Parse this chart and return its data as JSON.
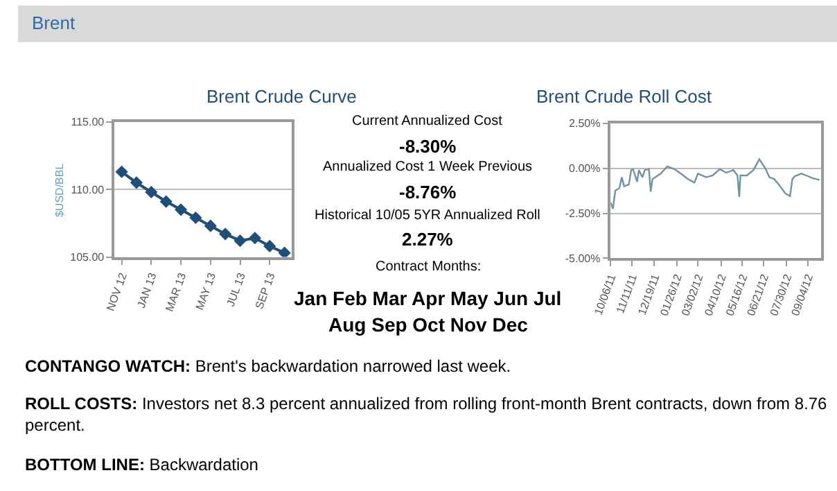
{
  "chart_data": [
    {
      "type": "line",
      "title": "Brent Crude Curve",
      "ylabel": "$USD/BBL",
      "categories": [
        "NOV 12",
        null,
        "JAN 13",
        null,
        "MAR 13",
        null,
        "MAY 13",
        null,
        "JUL 13",
        null,
        "SEP 13",
        null
      ],
      "values": [
        111.3,
        110.5,
        109.8,
        109.1,
        108.5,
        107.9,
        107.3,
        106.7,
        106.2,
        106.4,
        105.8,
        105.3
      ],
      "color": "#1f4e79",
      "marker": "diamond",
      "ylim": [
        105,
        115
      ],
      "yticks": [
        {
          "value": 105,
          "label": "105.00"
        },
        {
          "value": 110,
          "label": "110.00"
        },
        {
          "value": 115,
          "label": "115.00"
        }
      ],
      "grid": "y"
    },
    {
      "type": "other",
      "annotations": [
        "Brent",
        "Current Annualized Cost",
        "-8.30%",
        "Annualized Cost 1 Week Previous",
        "-8.76%",
        "Historical 10/05 5YR Annualized Roll",
        "2.27%",
        "Contract Months:",
        "Jan Feb Mar Apr May Jun Jul",
        "Aug Sep Oct Nov Dec",
        "CONTANGO WATCH: Brent's backwardation narrowed last week.",
        "ROLL COSTS: Investors net 8.3 percent annualized from rolling front-month Brent contracts, down from 8.76 percent.",
        "BOTTOM LINE: Backwardation"
      ]
    },
    {
      "type": "line",
      "title": "Brent Crude Roll Cost",
      "x": [
        "2011-10-06",
        "2011-10-10",
        "2011-10-14",
        "2011-10-21",
        "2011-10-25",
        "2011-10-29",
        "2011-11-06",
        "2011-11-10",
        "2011-11-13",
        "2011-11-20",
        "2011-11-23",
        "2011-11-29",
        "2011-12-03",
        "2011-12-10",
        "2011-12-13",
        "2011-12-16",
        "2011-12-30",
        "2012-01-10",
        "2012-01-22",
        "2012-02-02",
        "2012-02-14",
        "2012-02-25",
        "2012-03-02",
        "2012-03-16",
        "2012-03-27",
        "2012-04-08",
        "2012-04-19",
        "2012-05-01",
        "2012-05-08",
        "2012-05-11",
        "2012-05-13",
        "2012-05-24",
        "2012-06-04",
        "2012-06-14",
        "2012-06-24",
        "2012-07-01",
        "2012-07-09",
        "2012-07-17",
        "2012-07-28",
        "2012-08-05",
        "2012-08-09",
        "2012-08-13",
        "2012-08-24",
        "2012-09-05",
        "2012-09-12",
        "2012-09-24"
      ],
      "values": [
        -1.9,
        -2.25,
        -1.25,
        -1.1,
        -0.5,
        -1.0,
        -0.9,
        -0.1,
        -0.05,
        -0.75,
        -0.1,
        -0.5,
        -0.1,
        -0.05,
        -1.3,
        -0.6,
        -0.3,
        0.1,
        -0.05,
        -0.3,
        -0.6,
        -0.8,
        -0.3,
        -0.5,
        -0.4,
        -0.05,
        -0.25,
        -0.1,
        -0.4,
        -1.6,
        -0.4,
        -0.4,
        -0.1,
        0.5,
        0.0,
        -0.5,
        -0.6,
        -0.9,
        -1.4,
        -1.55,
        -0.6,
        -0.45,
        -0.3,
        -0.45,
        -0.55,
        -0.65
      ],
      "color": "#6f93a3",
      "xlim": [
        "2011-10-06",
        "2012-09-26"
      ],
      "xticks": [
        {
          "value": "2011-10-06",
          "label": "10/06/11"
        },
        {
          "value": "2011-11-11",
          "label": "11/11/11"
        },
        {
          "value": "2011-12-19",
          "label": "12/19/11"
        },
        {
          "value": "2012-01-26",
          "label": "01/26/12"
        },
        {
          "value": "2012-03-02",
          "label": "03/02/12"
        },
        {
          "value": "2012-04-10",
          "label": "04/10/12"
        },
        {
          "value": "2012-05-16",
          "label": "05/16/12"
        },
        {
          "value": "2012-06-21",
          "label": "06/21/12"
        },
        {
          "value": "2012-07-30",
          "label": "07/30/12"
        },
        {
          "value": "2012-09-04",
          "label": "09/04/12"
        }
      ],
      "ylim": [
        -5,
        2.5
      ],
      "yticks": [
        {
          "value": -5,
          "label": "-5.00%"
        },
        {
          "value": -2.5,
          "label": "-2.50%"
        },
        {
          "value": 0,
          "label": "0.00%"
        },
        {
          "value": 2.5,
          "label": "2.50%"
        }
      ],
      "grid": "y"
    }
  ]
}
